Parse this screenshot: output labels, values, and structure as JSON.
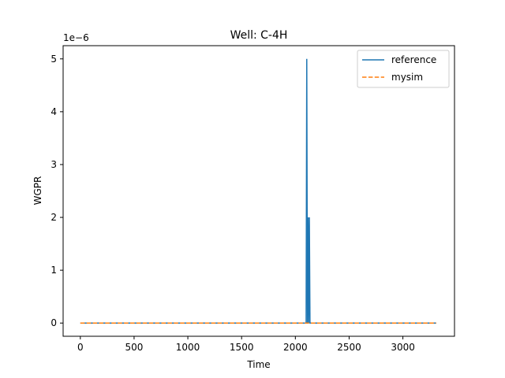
{
  "chart_data": {
    "type": "line",
    "title": "Well: C-4H",
    "xlabel": "Time",
    "ylabel": "WGPR",
    "y_multiplier_label": "1e−6",
    "xlim": [
      -160,
      3480
    ],
    "ylim": [
      -0.25,
      5.25
    ],
    "x_ticks": [
      0,
      500,
      1000,
      1500,
      2000,
      2500,
      3000
    ],
    "x_tick_labels": [
      "0",
      "500",
      "1000",
      "1500",
      "2000",
      "2500",
      "3000"
    ],
    "y_ticks": [
      0,
      1,
      2,
      3,
      4,
      5
    ],
    "y_tick_labels": [
      "0",
      "1",
      "2",
      "3",
      "4",
      "5"
    ],
    "grid": false,
    "legend_position": "top-right",
    "series": [
      {
        "name": "reference",
        "color": "#1f77b4",
        "style": "solid",
        "x": [
          0,
          2100,
          2106,
          2112,
          2118,
          2124,
          2130,
          2136,
          2142,
          3310
        ],
        "y": [
          0,
          0,
          5,
          0,
          2,
          0,
          2,
          0,
          0,
          0
        ]
      },
      {
        "name": "mysim",
        "color": "#ff7f0e",
        "style": "dashed",
        "x": [
          0,
          3310
        ],
        "y": [
          0,
          0
        ]
      }
    ]
  }
}
